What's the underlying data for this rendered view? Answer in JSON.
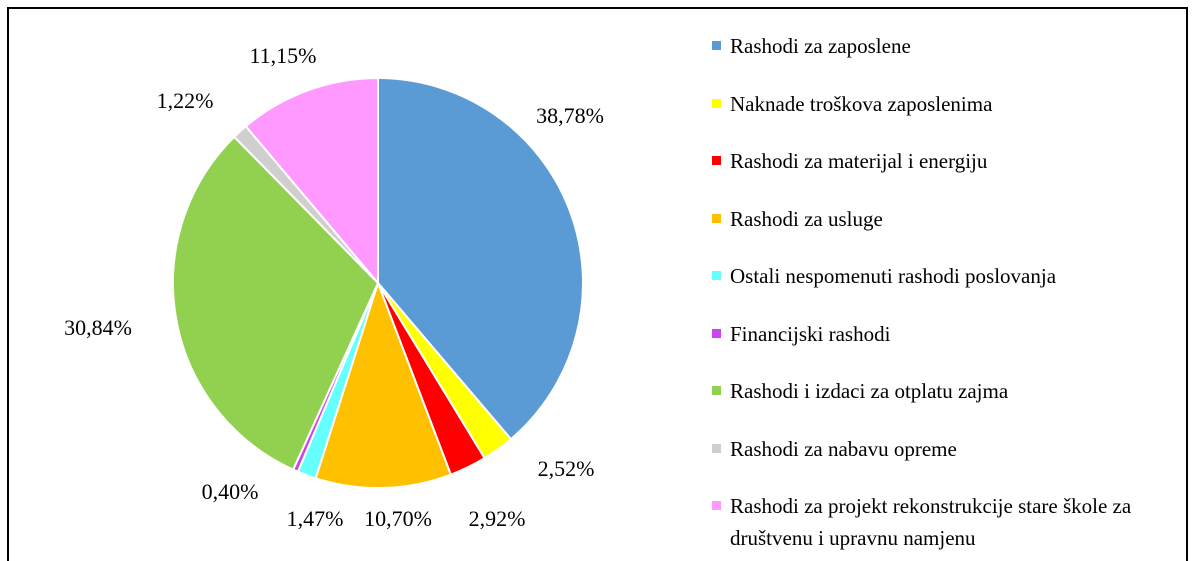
{
  "chart_data": {
    "type": "pie",
    "categories": [
      "Rashodi za zaposlene",
      "Naknade troškova zaposlenima",
      "Rashodi za materijal i energiju",
      "Rashodi za usluge",
      "Ostali nespomenuti rashodi poslovanja",
      "Financijski rashodi",
      "Rashodi i izdaci za otplatu zajma",
      "Rashodi za nabavu opreme",
      "Rashodi za projekt rekonstrukcije stare škole za društvenu i upravnu namjenu"
    ],
    "values": [
      38.78,
      2.52,
      2.92,
      10.7,
      1.47,
      0.4,
      30.84,
      1.22,
      11.15
    ],
    "value_labels": [
      "38,78%",
      "2,52%",
      "2,92%",
      "10,70%",
      "1,47%",
      "0,40%",
      "30,84%",
      "1,22%",
      "11,15%"
    ],
    "colors": [
      "#5b9bd5",
      "#ffff00",
      "#ff0000",
      "#ffc000",
      "#66ffff",
      "#cc44ee",
      "#92d050",
      "#d0cece",
      "#ff99ff"
    ],
    "legend": "right"
  }
}
